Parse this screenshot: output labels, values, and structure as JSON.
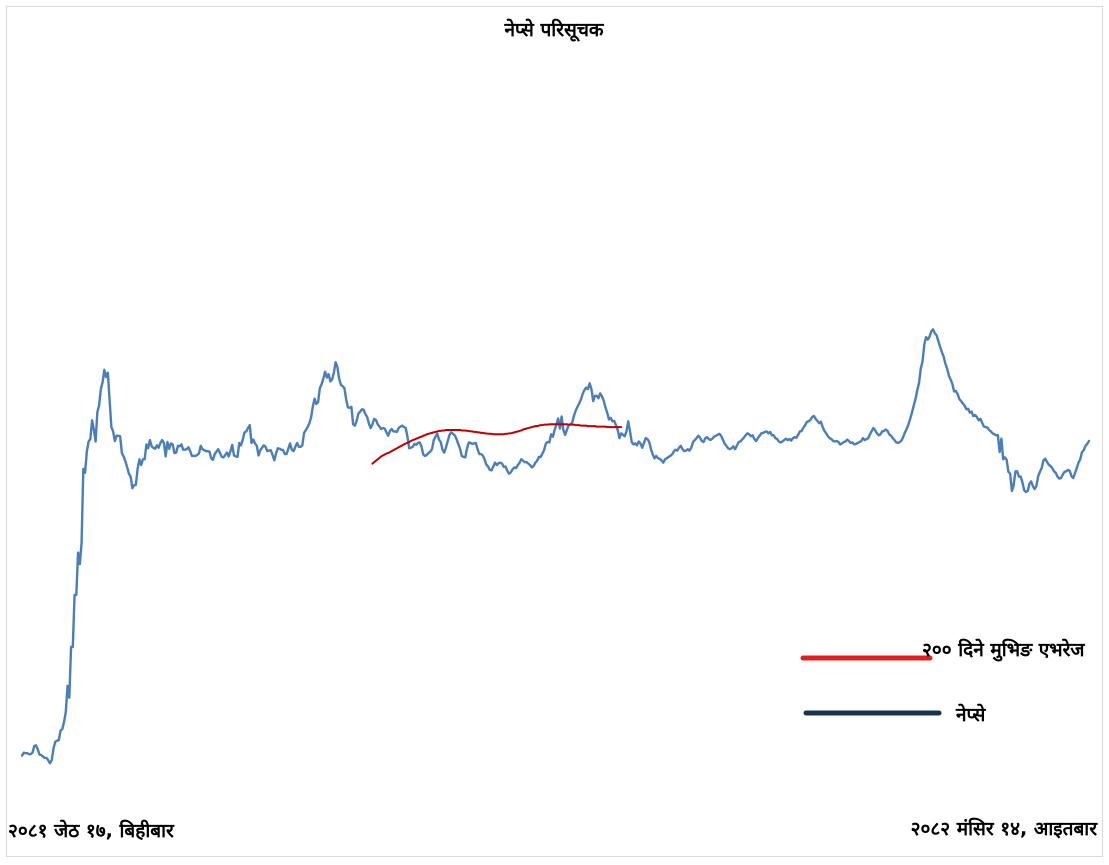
{
  "chart_data": {
    "type": "line",
    "title": "नेप्से परिसूचक",
    "start_label": "२०८१ जेठ १७, बिहीबार",
    "end_label": "२०८२ मंसिर १४, आइतबार",
    "ylim": [
      1950,
      3000
    ],
    "colors": {
      "index": "#4a7ebb",
      "ma200": "#c00000",
      "legend_ma200": "#e02020",
      "legend_index": "#17354a"
    },
    "series": [
      {
        "name": "नेप्से",
        "values": [
          1980,
          1986,
          1985,
          1985,
          1983,
          1983,
          1986,
          2000,
          2001,
          1993,
          1982,
          1981,
          1978,
          1975,
          1975,
          1970,
          1964,
          1971,
          1995,
          2009,
          2011,
          2012,
          2032,
          2035,
          2050,
          2071,
          2125,
          2100,
          2206,
          2206,
          2314,
          2314,
          2402,
          2378,
          2422,
          2576,
          2568,
          2612,
          2633,
          2638,
          2677,
          2658,
          2633,
          2694,
          2708,
          2742,
          2756,
          2782,
          2767,
          2776,
          2719,
          2663,
          2654,
          2634,
          2645,
          2645,
          2644,
          2609,
          2602,
          2592,
          2580,
          2566,
          2560,
          2536,
          2542,
          2543,
          2577,
          2596,
          2584,
          2596,
          2596,
          2627,
          2619,
          2636,
          2623,
          2620,
          2618,
          2625,
          2620,
          2630,
          2636,
          2630,
          2602,
          2632,
          2618,
          2629,
          2627,
          2609,
          2610,
          2624,
          2623,
          2627,
          2616,
          2616,
          2617,
          2621,
          2613,
          2603,
          2603,
          2603,
          2605,
          2608,
          2624,
          2617,
          2615,
          2613,
          2613,
          2612,
          2598,
          2595,
          2607,
          2612,
          2617,
          2609,
          2601,
          2600,
          2605,
          2610,
          2602,
          2613,
          2626,
          2604,
          2602,
          2601,
          2630,
          2625,
          2637,
          2652,
          2654,
          2661,
          2667,
          2630,
          2637,
          2629,
          2624,
          2604,
          2615,
          2620,
          2625,
          2622,
          2613,
          2614,
          2615,
          2605,
          2594,
          2608,
          2619,
          2618,
          2616,
          2615,
          2607,
          2607,
          2618,
          2629,
          2616,
          2613,
          2622,
          2630,
          2622,
          2622,
          2625,
          2651,
          2657,
          2663,
          2671,
          2683,
          2706,
          2722,
          2711,
          2715,
          2744,
          2752,
          2764,
          2778,
          2766,
          2773,
          2758,
          2762,
          2776,
          2798,
          2788,
          2764,
          2751,
          2748,
          2744,
          2721,
          2704,
          2703,
          2705,
          2669,
          2666,
          2676,
          2691,
          2695,
          2700,
          2699,
          2690,
          2684,
          2670,
          2661,
          2669,
          2680,
          2678,
          2669,
          2664,
          2659,
          2661,
          2660,
          2652,
          2645,
          2655,
          2659,
          2654,
          2654,
          2653,
          2661,
          2664,
          2666,
          2663,
          2661,
          2643,
          2619,
          2620,
          2622,
          2628,
          2626,
          2630,
          2631,
          2623,
          2606,
          2603,
          2605,
          2609,
          2612,
          2617,
          2636,
          2643,
          2649,
          2637,
          2632,
          2616,
          2610,
          2621,
          2634,
          2647,
          2652,
          2649,
          2646,
          2638,
          2628,
          2618,
          2603,
          2601,
          2600,
          2619,
          2631,
          2630,
          2628,
          2629,
          2630,
          2617,
          2607,
          2607,
          2604,
          2596,
          2585,
          2581,
          2574,
          2573,
          2581,
          2589,
          2584,
          2588,
          2589,
          2587,
          2580,
          2581,
          2572,
          2566,
          2569,
          2575,
          2579,
          2578,
          2584,
          2589,
          2596,
          2593,
          2590,
          2590,
          2587,
          2584,
          2579,
          2582,
          2589,
          2593,
          2601,
          2601,
          2608,
          2615,
          2629,
          2632,
          2631,
          2648,
          2643,
          2657,
          2668,
          2681,
          2660,
          2685,
          2657,
          2647,
          2657,
          2667,
          2669,
          2672,
          2686,
          2697,
          2705,
          2712,
          2720,
          2732,
          2740,
          2745,
          2742,
          2754,
          2742,
          2717,
          2728,
          2728,
          2723,
          2733,
          2727,
          2718,
          2704,
          2693,
          2679,
          2682,
          2675,
          2676,
          2667,
          2657,
          2640,
          2650,
          2647,
          2644,
          2654,
          2675,
          2655,
          2632,
          2627,
          2629,
          2625,
          2633,
          2629,
          2620,
          2630,
          2640,
          2638,
          2632,
          2617,
          2606,
          2598,
          2603,
          2598,
          2597,
          2594,
          2589,
          2596,
          2598,
          2601,
          2603,
          2606,
          2612,
          2616,
          2614,
          2620,
          2624,
          2617,
          2613,
          2614,
          2617,
          2614,
          2620,
          2632,
          2636,
          2640,
          2645,
          2641,
          2634,
          2632,
          2640,
          2642,
          2638,
          2636,
          2639,
          2643,
          2645,
          2647,
          2649,
          2645,
          2637,
          2629,
          2624,
          2619,
          2617,
          2619,
          2623,
          2617,
          2624,
          2632,
          2633,
          2637,
          2641,
          2646,
          2650,
          2648,
          2644,
          2646,
          2638,
          2634,
          2640,
          2645,
          2650,
          2651,
          2653,
          2654,
          2650,
          2653,
          2646,
          2646,
          2640,
          2638,
          2633,
          2631,
          2633,
          2636,
          2639,
          2636,
          2638,
          2635,
          2640,
          2642,
          2641,
          2647,
          2654,
          2655,
          2662,
          2667,
          2674,
          2675,
          2678,
          2684,
          2686,
          2680,
          2676,
          2671,
          2674,
          2663,
          2655,
          2650,
          2644,
          2640,
          2638,
          2634,
          2633,
          2634,
          2632,
          2627,
          2629,
          2632,
          2633,
          2637,
          2634,
          2630,
          2631,
          2627,
          2628,
          2630,
          2632,
          2634,
          2640,
          2636,
          2638,
          2640,
          2648,
          2655,
          2661,
          2656,
          2650,
          2646,
          2648,
          2654,
          2655,
          2658,
          2655,
          2648,
          2645,
          2640,
          2636,
          2631,
          2630,
          2632,
          2635,
          2643,
          2652,
          2660,
          2669,
          2681,
          2694,
          2708,
          2722,
          2740,
          2755,
          2785,
          2800,
          2835,
          2850,
          2845,
          2851,
          2862,
          2866,
          2858,
          2854,
          2842,
          2830,
          2819,
          2810,
          2795,
          2785,
          2770,
          2762,
          2753,
          2737,
          2738,
          2732,
          2721,
          2717,
          2712,
          2708,
          2700,
          2701,
          2693,
          2695,
          2686,
          2688,
          2684,
          2677,
          2680,
          2672,
          2664,
          2663,
          2662,
          2657,
          2654,
          2650,
          2648,
          2646,
          2646,
          2611,
          2639,
          2596,
          2600,
          2595,
          2570,
          2566,
          2530,
          2542,
          2571,
          2571,
          2560,
          2560,
          2548,
          2532,
          2528,
          2530,
          2545,
          2550,
          2540,
          2534,
          2541,
          2561,
          2570,
          2578,
          2594,
          2597,
          2591,
          2585,
          2582,
          2578,
          2571,
          2568,
          2560,
          2556,
          2557,
          2564,
          2570,
          2571,
          2574,
          2572,
          2561,
          2557,
          2567,
          2578,
          2589,
          2596,
          2611,
          2615,
          2624,
          2628,
          2634
        ]
      },
      {
        "name": "२०० दिने मुभिङ एभरेज",
        "start_index": 200,
        "values": [
          2587,
          2590,
          2593,
          2596,
          2599,
          2602,
          2604,
          2606,
          2608,
          2609,
          2611,
          2613,
          2615,
          2617,
          2619,
          2621,
          2623,
          2625,
          2627,
          2629,
          2630,
          2632,
          2634,
          2636,
          2637,
          2639,
          2640,
          2642,
          2643,
          2645,
          2646,
          2648,
          2649,
          2650,
          2651,
          2652,
          2653,
          2654,
          2655,
          2655,
          2656,
          2656,
          2657,
          2657,
          2657,
          2657,
          2657,
          2657,
          2657,
          2657,
          2657,
          2656,
          2656,
          2656,
          2655,
          2655,
          2654,
          2654,
          2653,
          2653,
          2652,
          2652,
          2651,
          2651,
          2650,
          2650,
          2649,
          2649,
          2649,
          2648,
          2648,
          2648,
          2648,
          2648,
          2648,
          2648,
          2649,
          2649,
          2650,
          2650,
          2651,
          2652,
          2653,
          2654,
          2655,
          2656,
          2658,
          2659,
          2660,
          2661,
          2662,
          2663,
          2664,
          2665,
          2665,
          2666,
          2667,
          2667,
          2668,
          2668,
          2668,
          2669,
          2669,
          2669,
          2669,
          2669,
          2669,
          2669,
          2669,
          2669,
          2669,
          2669,
          2668,
          2668,
          2668,
          2668,
          2667,
          2667,
          2667,
          2666,
          2666,
          2666,
          2666,
          2665,
          2665,
          2665,
          2665,
          2665,
          2664,
          2664,
          2664,
          2664,
          2664,
          2664,
          2663,
          2663,
          2663,
          2663,
          2663,
          2663,
          2663,
          2663,
          2663
        ]
      }
    ],
    "legend": [
      {
        "label": "२०० दिने मुभिङ एभरेज",
        "color": "#e02020"
      },
      {
        "label": "नेप्से",
        "color": "#17354a"
      }
    ]
  }
}
